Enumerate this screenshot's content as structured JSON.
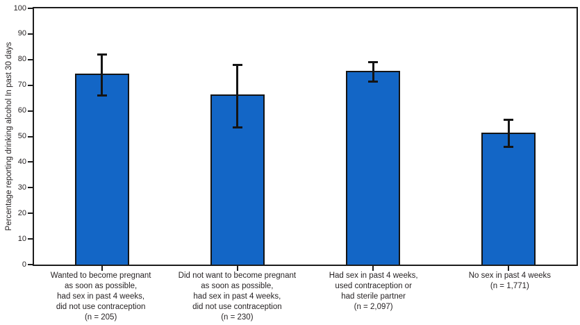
{
  "chart_data": {
    "type": "bar",
    "title": "",
    "ylabel": "Percentage reporting drinking alcohol In past 30 days",
    "xlabel": "",
    "ylim": [
      0,
      100
    ],
    "yticks": [
      0,
      10,
      20,
      30,
      40,
      50,
      60,
      70,
      80,
      90,
      100
    ],
    "grid": false,
    "legend": "none",
    "bar_color": "#1366c6",
    "bar_border_color": "#141414",
    "error_bar_color": "#141414",
    "frame_color": "#1c1c1c",
    "categories": [
      [
        "Wanted to become pregnant",
        "as soon as possible,",
        "had sex in past 4 weeks,",
        "did not use contraception",
        "(n = 205)"
      ],
      [
        "Did not want to become pregnant",
        "as soon as possible,",
        "had sex in past 4 weeks,",
        "did not use contraception",
        "(n = 230)"
      ],
      [
        "Had sex in past 4 weeks,",
        "used contraception or",
        "had sterile partner",
        "(n = 2,097)"
      ],
      [
        "No sex in past 4 weeks",
        "(n = 1,771)"
      ]
    ],
    "n_values": [
      "205",
      "230",
      "2,097",
      "1,771"
    ],
    "series": [
      {
        "name": "Percentage reporting drinking alcohol in past 30 days",
        "values": [
          74.5,
          66.5,
          75.5,
          51.5
        ],
        "ci_low": [
          66,
          53.5,
          71.5,
          46
        ],
        "ci_high": [
          82,
          78,
          79,
          56.5
        ]
      }
    ]
  }
}
